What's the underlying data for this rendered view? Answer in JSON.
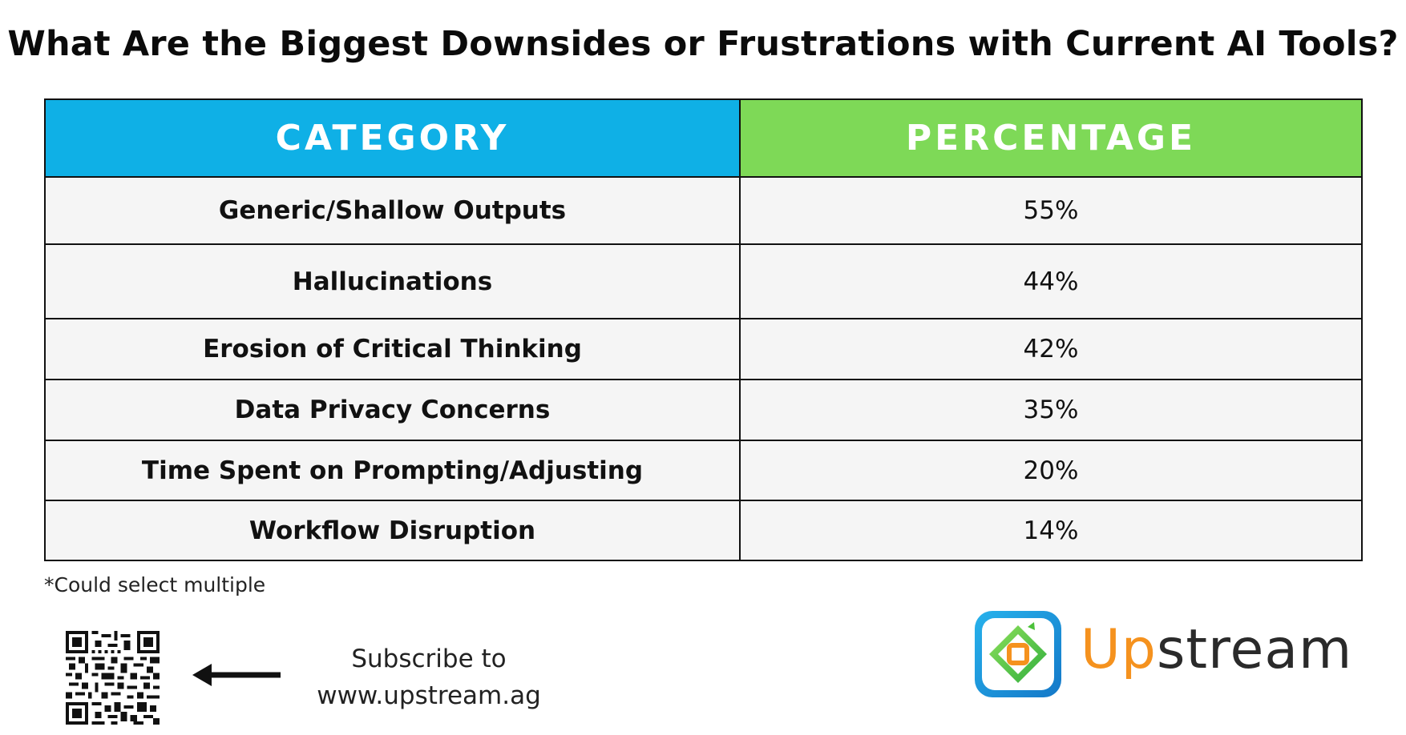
{
  "chart_data": {
    "type": "table",
    "title": "What Are the Biggest Downsides or Frustrations with Current AI Tools?",
    "columns": [
      "CATEGORY",
      "PERCENTAGE"
    ],
    "rows": [
      {
        "category": "Generic/Shallow Outputs",
        "percentage": "55%"
      },
      {
        "category": "Hallucinations",
        "percentage": "44%"
      },
      {
        "category": "Erosion of Critical Thinking",
        "percentage": "42%"
      },
      {
        "category": "Data Privacy Concerns",
        "percentage": "35%"
      },
      {
        "category": "Time Spent on Prompting/Adjusting",
        "percentage": "20%"
      },
      {
        "category": "Workflow Disruption",
        "percentage": "14%"
      }
    ],
    "footnote": "*Could select multiple"
  },
  "footer": {
    "subscribe_line1": "Subscribe to",
    "subscribe_line2": "www.upstream.ag",
    "brand_part1": "Up",
    "brand_part2": "stream"
  },
  "colors": {
    "category_header": "#0fb0e6",
    "percentage_header": "#7ed957",
    "row_bg": "#f5f5f5",
    "brand_orange": "#f5921e",
    "brand_blue": "#1aa3e0",
    "brand_green": "#5cc43a"
  },
  "icons": {
    "qr": "qr-code-icon",
    "arrow": "arrow-left-icon",
    "logo": "upstream-logo-icon"
  }
}
